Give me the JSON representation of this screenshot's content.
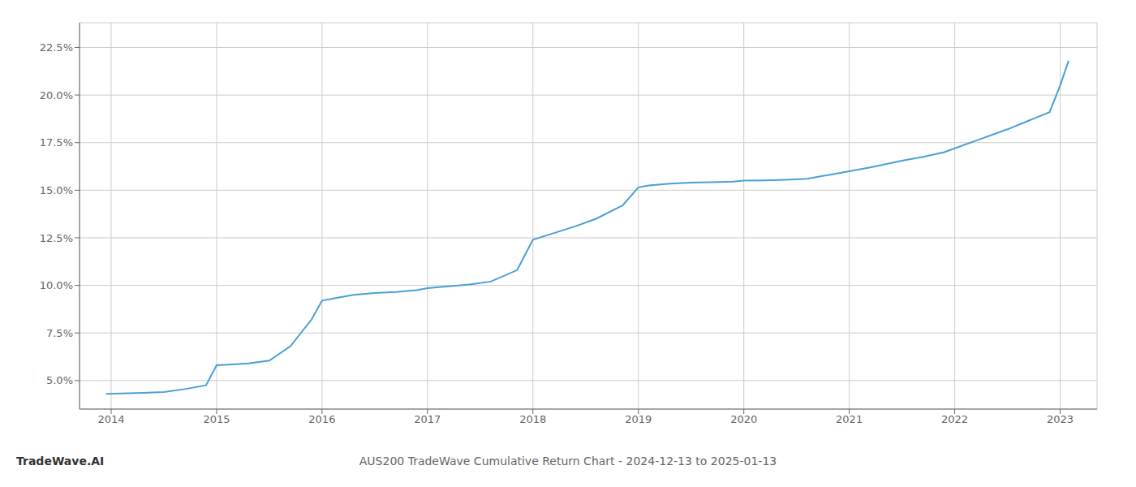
{
  "chart_data": {
    "type": "line",
    "title": "AUS200 TradeWave Cumulative Return Chart - 2024-12-13 to 2025-01-13",
    "annotations": [
      "TradeWave.AI"
    ],
    "x": [
      2013.95,
      2014.1,
      2014.3,
      2014.5,
      2014.7,
      2014.9,
      2015.0,
      2015.15,
      2015.3,
      2015.5,
      2015.7,
      2015.9,
      2016.0,
      2016.15,
      2016.3,
      2016.5,
      2016.7,
      2016.9,
      2017.0,
      2017.2,
      2017.4,
      2017.6,
      2017.85,
      2018.0,
      2018.2,
      2018.4,
      2018.6,
      2018.85,
      2019.0,
      2019.1,
      2019.3,
      2019.5,
      2019.7,
      2019.9,
      2020.0,
      2020.2,
      2020.4,
      2020.6,
      2020.85,
      2021.0,
      2021.2,
      2021.5,
      2021.7,
      2021.9,
      2022.0,
      2022.2,
      2022.5,
      2022.7,
      2022.9,
      2023.0,
      2023.08
    ],
    "values": [
      4.3,
      4.32,
      4.35,
      4.4,
      4.55,
      4.75,
      5.8,
      5.85,
      5.9,
      6.05,
      6.8,
      8.2,
      9.2,
      9.35,
      9.5,
      9.6,
      9.65,
      9.75,
      9.85,
      9.95,
      10.05,
      10.2,
      10.8,
      12.4,
      12.75,
      13.1,
      13.5,
      14.2,
      15.15,
      15.25,
      15.35,
      15.4,
      15.42,
      15.45,
      15.5,
      15.52,
      15.55,
      15.6,
      15.85,
      16.0,
      16.2,
      16.55,
      16.75,
      17.0,
      17.2,
      17.6,
      18.2,
      18.65,
      19.1,
      20.5,
      21.8
    ],
    "color": "#4a9fd4",
    "xlim": [
      2013.7,
      2023.35
    ],
    "ylim": [
      3.5,
      23.8
    ],
    "xticks": [
      2014,
      2015,
      2016,
      2017,
      2018,
      2019,
      2020,
      2021,
      2022,
      2023
    ],
    "yticks": [
      {
        "value": 5.0,
        "label": "5.0%"
      },
      {
        "value": 7.5,
        "label": "7.5%"
      },
      {
        "value": 10.0,
        "label": "10.0%"
      },
      {
        "value": 12.5,
        "label": "12.5%"
      },
      {
        "value": 15.0,
        "label": "15.0%"
      },
      {
        "value": 17.5,
        "label": "17.5%"
      },
      {
        "value": 20.0,
        "label": "20.0%"
      },
      {
        "value": 22.5,
        "label": "22.5%"
      }
    ],
    "grid": true
  }
}
